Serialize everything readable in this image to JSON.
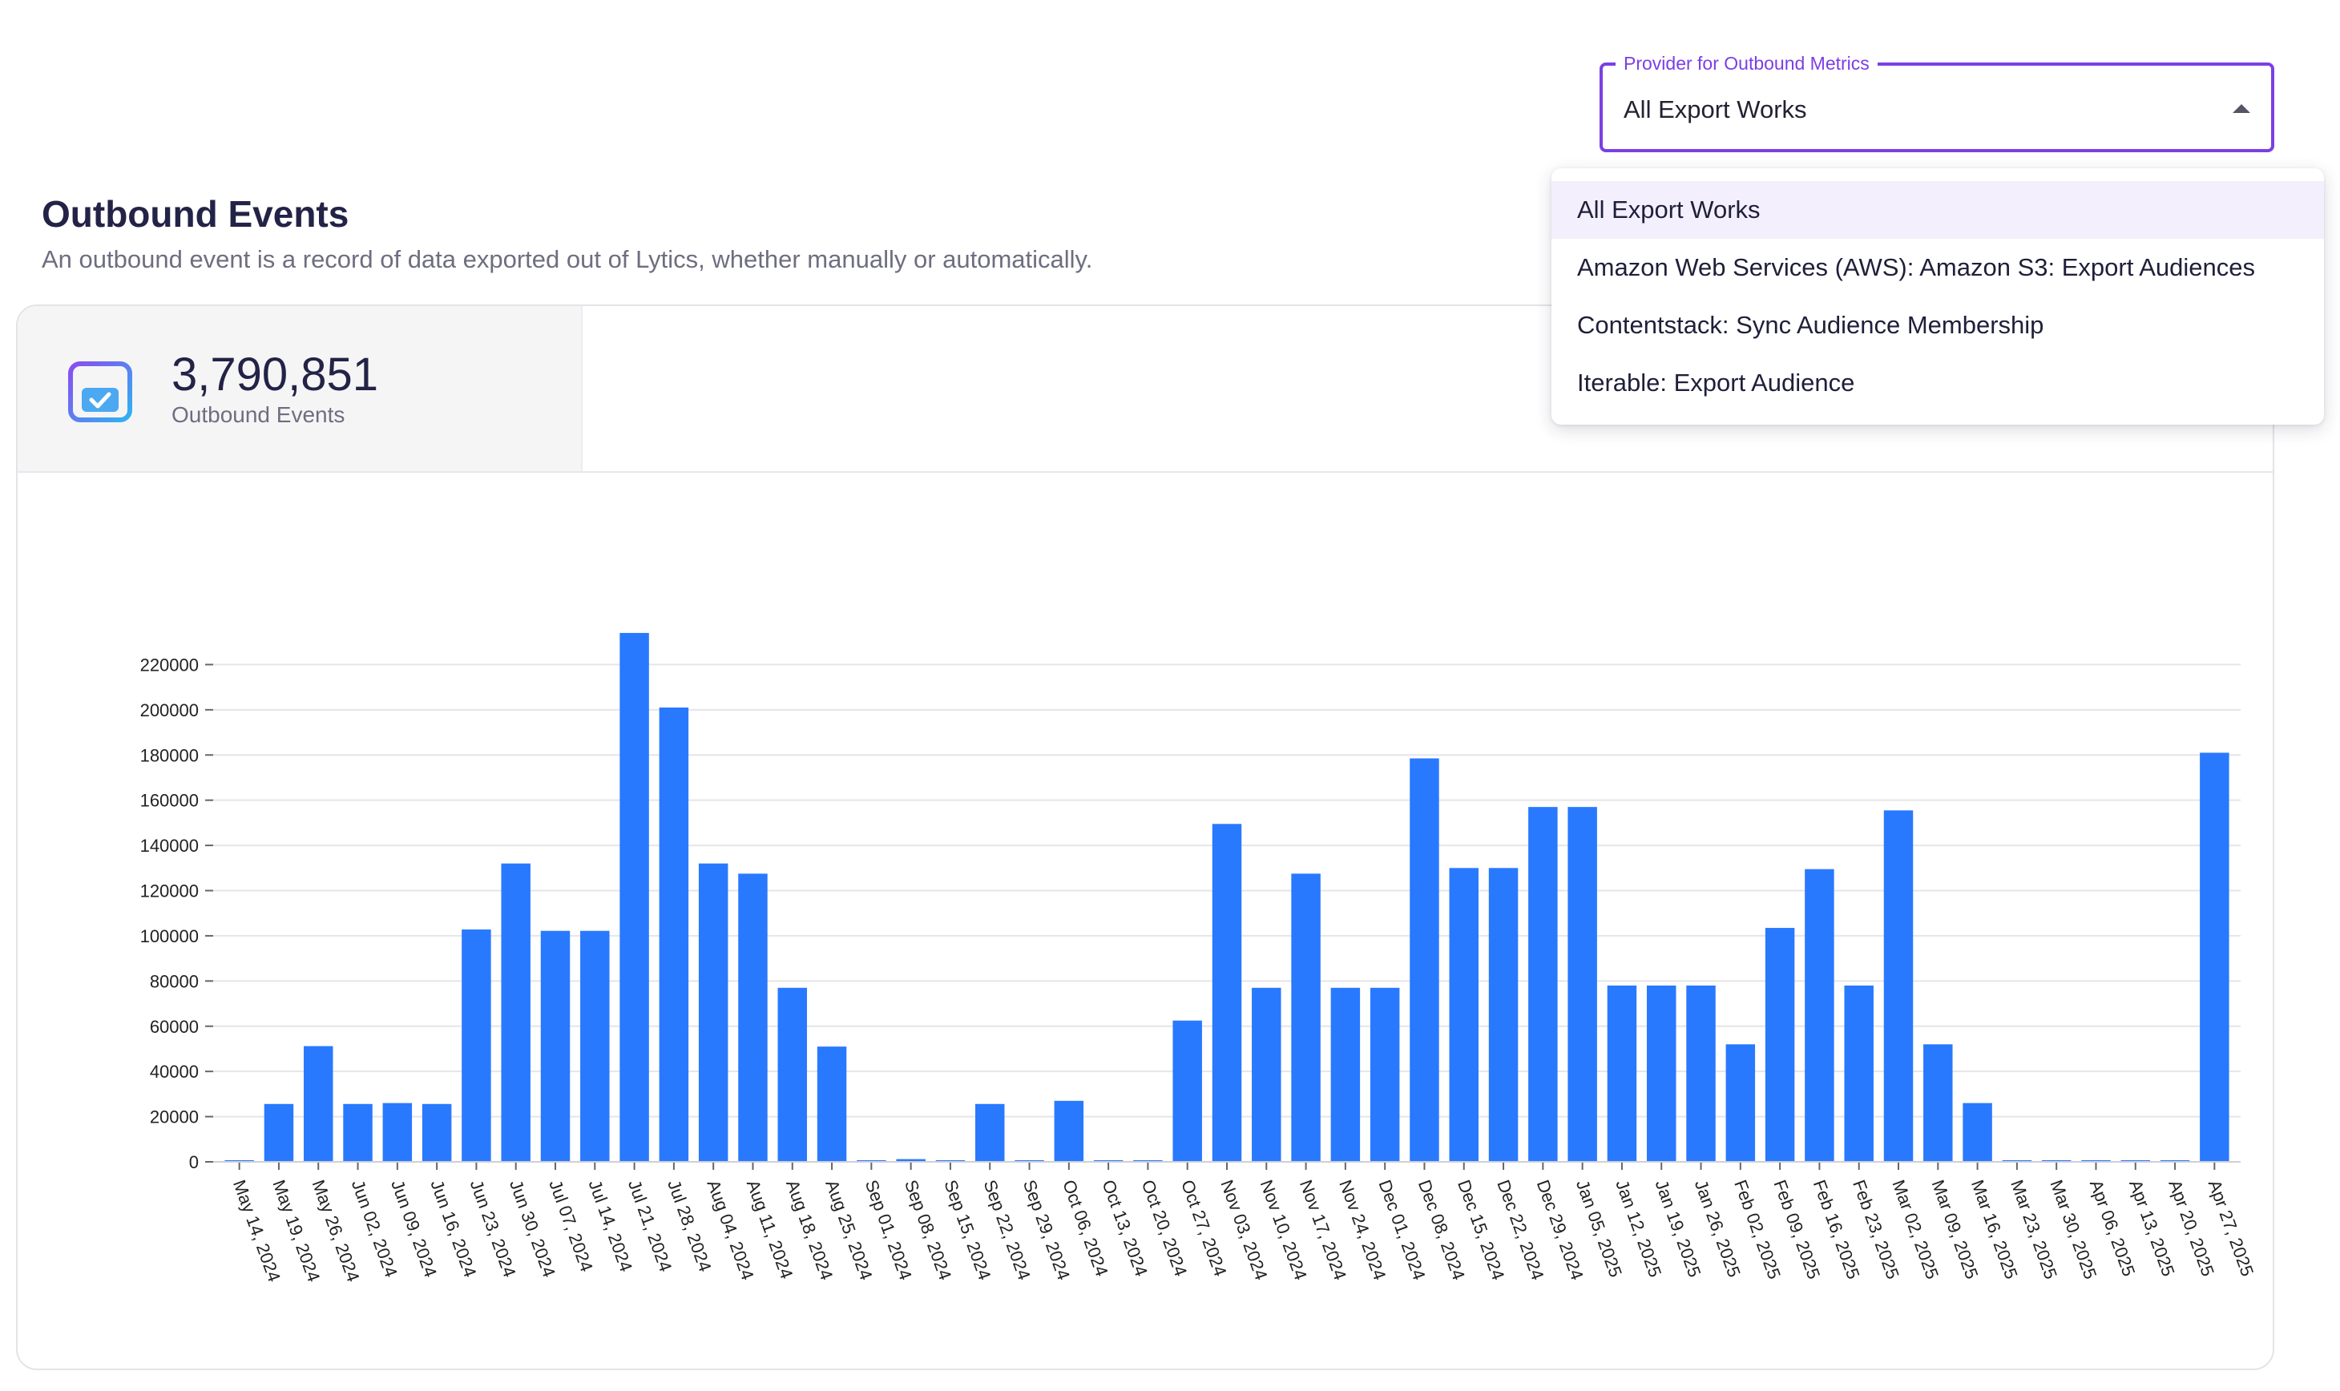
{
  "header": {
    "title": "Outbound Events",
    "subtitle": "An outbound event is a record of data exported out of Lytics, whether manually or automatically."
  },
  "metric": {
    "value": "3,790,851",
    "label": "Outbound Events",
    "icon": "calendar-check-icon"
  },
  "provider_select": {
    "label": "Provider for Outbound Metrics",
    "value": "All Export Works",
    "options": [
      "All Export Works",
      "Amazon Web Services (AWS): Amazon S3: Export Audiences",
      "Contentstack: Sync Audience Membership",
      "Iterable: Export Audience"
    ],
    "selected_index": 0
  },
  "colors": {
    "bar": "#2979ff",
    "accent": "#7b3fe4",
    "grid": "#e5e5ea",
    "axis_text": "#222222"
  },
  "chart_data": {
    "type": "bar",
    "categories": [
      "May 14, 2024",
      "May 19, 2024",
      "May 26, 2024",
      "Jun 02, 2024",
      "Jun 09, 2024",
      "Jun 16, 2024",
      "Jun 23, 2024",
      "Jun 30, 2024",
      "Jul 07, 2024",
      "Jul 14, 2024",
      "Jul 21, 2024",
      "Jul 28, 2024",
      "Aug 04, 2024",
      "Aug 11, 2024",
      "Aug 18, 2024",
      "Aug 25, 2024",
      "Sep 01, 2024",
      "Sep 08, 2024",
      "Sep 15, 2024",
      "Sep 22, 2024",
      "Sep 29, 2024",
      "Oct 06, 2024",
      "Oct 13, 2024",
      "Oct 20, 2024",
      "Oct 27, 2024",
      "Nov 03, 2024",
      "Nov 10, 2024",
      "Nov 17, 2024",
      "Nov 24, 2024",
      "Dec 01, 2024",
      "Dec 08, 2024",
      "Dec 15, 2024",
      "Dec 22, 2024",
      "Dec 29, 2024",
      "Jan 05, 2025",
      "Jan 12, 2025",
      "Jan 19, 2025",
      "Jan 26, 2025",
      "Feb 02, 2025",
      "Feb 09, 2025",
      "Feb 16, 2025",
      "Feb 23, 2025",
      "Mar 02, 2025",
      "Mar 09, 2025",
      "Mar 16, 2025",
      "Mar 23, 2025",
      "Mar 30, 2025",
      "Apr 06, 2025",
      "Apr 13, 2025",
      "Apr 20, 2025",
      "Apr 27, 2025"
    ],
    "values": [
      500,
      25600,
      51200,
      25600,
      26000,
      25600,
      102800,
      132000,
      102200,
      102200,
      234000,
      201000,
      132000,
      127500,
      77000,
      51000,
      500,
      1200,
      500,
      25600,
      500,
      27000,
      500,
      500,
      62500,
      149500,
      77000,
      127500,
      77000,
      77000,
      178500,
      130000,
      130000,
      157000,
      157000,
      78000,
      78000,
      78000,
      52000,
      103500,
      129500,
      78000,
      155500,
      52000,
      26000,
      500,
      500,
      500,
      500,
      500,
      181000
    ],
    "yticks": [
      0,
      20000,
      40000,
      60000,
      80000,
      100000,
      120000,
      140000,
      160000,
      180000,
      200000,
      220000
    ],
    "ylim": [
      0,
      240000
    ],
    "grid": true
  }
}
